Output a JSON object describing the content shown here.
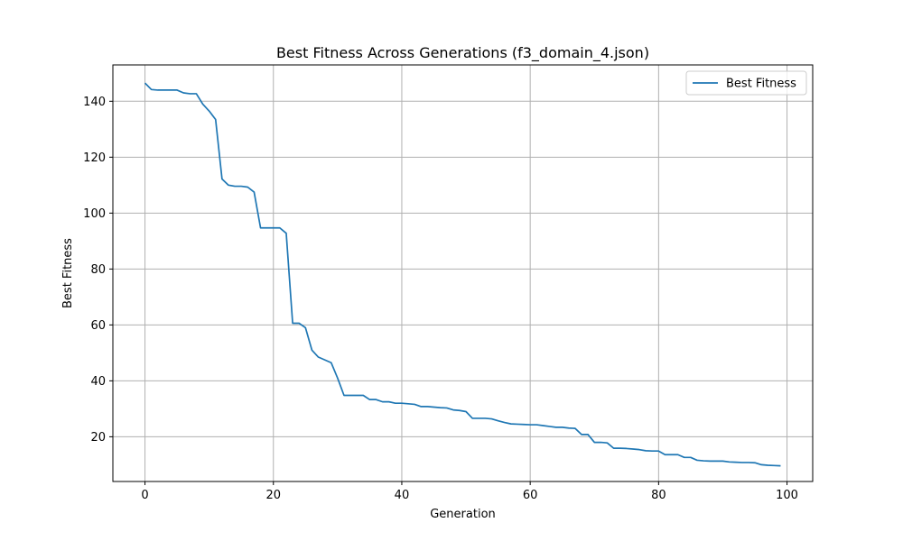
{
  "chart_data": {
    "type": "line",
    "title": "Best Fitness Across Generations (f3_domain_4.json)",
    "xlabel": "Generation",
    "ylabel": "Best Fitness",
    "xlim": [
      -5,
      104
    ],
    "ylim": [
      4,
      153
    ],
    "xticks": [
      0,
      20,
      40,
      60,
      80,
      100
    ],
    "yticks": [
      20,
      40,
      60,
      80,
      100,
      120,
      140
    ],
    "grid": true,
    "legend_position": "top-right",
    "series": [
      {
        "name": "Best Fitness",
        "color": "#1f77b4",
        "x": [
          0,
          1,
          2,
          3,
          4,
          5,
          6,
          7,
          8,
          9,
          10,
          11,
          12,
          13,
          14,
          15,
          16,
          17,
          18,
          19,
          20,
          21,
          22,
          23,
          24,
          25,
          26,
          27,
          28,
          29,
          30,
          31,
          32,
          33,
          34,
          35,
          36,
          37,
          38,
          39,
          40,
          41,
          42,
          43,
          44,
          45,
          46,
          47,
          48,
          49,
          50,
          51,
          52,
          53,
          54,
          55,
          56,
          57,
          58,
          59,
          60,
          61,
          62,
          63,
          64,
          65,
          66,
          67,
          68,
          69,
          70,
          71,
          72,
          73,
          74,
          75,
          76,
          77,
          78,
          79,
          80,
          81,
          82,
          83,
          84,
          85,
          86,
          87,
          88,
          89,
          90,
          91,
          92,
          93,
          94,
          95,
          96,
          97,
          98,
          99
        ],
        "y": [
          146.5,
          144.2,
          144.0,
          144.0,
          144.0,
          144.0,
          143.0,
          142.7,
          142.7,
          139.0,
          136.5,
          133.5,
          112.2,
          110.0,
          109.6,
          109.6,
          109.3,
          107.5,
          94.7,
          94.7,
          94.7,
          94.7,
          92.8,
          60.6,
          60.6,
          59.0,
          51.0,
          48.5,
          47.5,
          46.5,
          41.0,
          34.8,
          34.8,
          34.8,
          34.8,
          33.3,
          33.3,
          32.5,
          32.5,
          32.0,
          32.0,
          31.8,
          31.6,
          30.8,
          30.8,
          30.6,
          30.4,
          30.3,
          29.6,
          29.4,
          29.0,
          26.6,
          26.6,
          26.6,
          26.4,
          25.7,
          25.1,
          24.6,
          24.5,
          24.4,
          24.3,
          24.3,
          24.0,
          23.7,
          23.4,
          23.4,
          23.1,
          23.0,
          20.8,
          20.8,
          18.0,
          18.0,
          17.8,
          15.9,
          15.9,
          15.8,
          15.6,
          15.4,
          15.0,
          14.9,
          14.9,
          13.6,
          13.6,
          13.6,
          12.6,
          12.6,
          11.6,
          11.4,
          11.3,
          11.3,
          11.3,
          11.0,
          10.9,
          10.8,
          10.8,
          10.7,
          10.0,
          9.8,
          9.7,
          9.6
        ]
      }
    ]
  }
}
